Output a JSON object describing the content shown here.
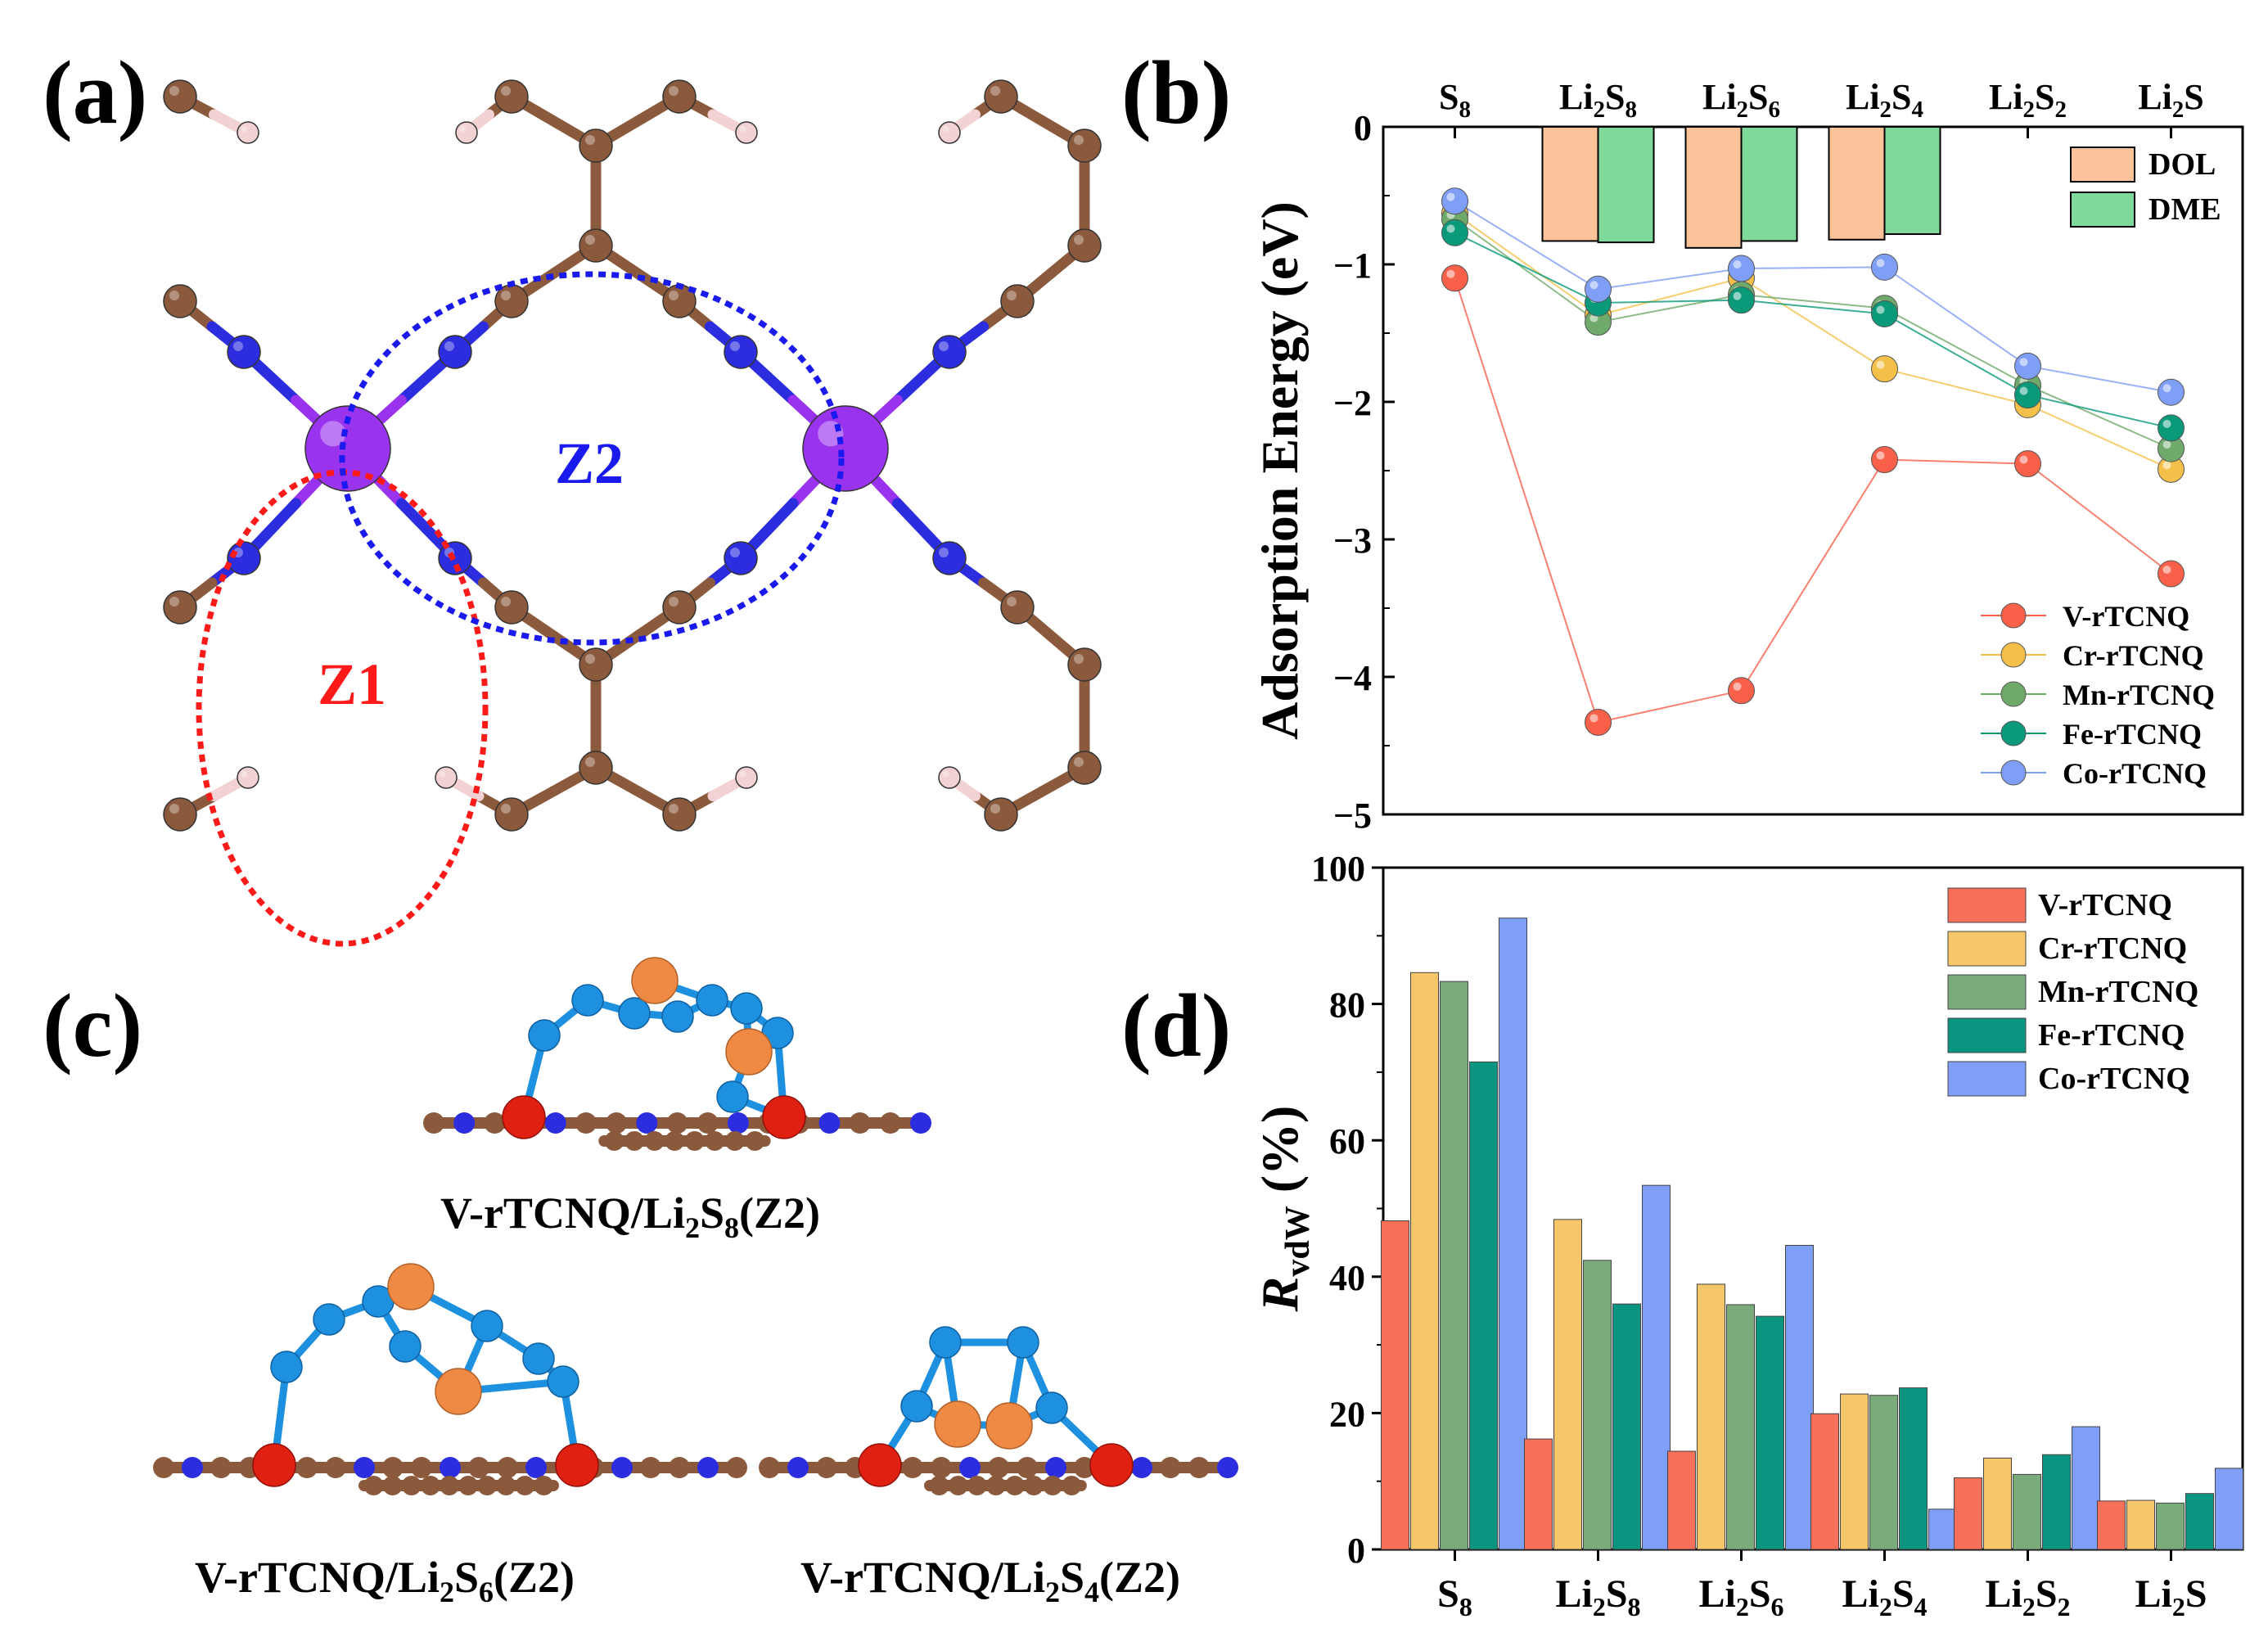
{
  "panels": {
    "a": "(a)",
    "b": "(b)",
    "c": "(c)",
    "d": "(d)"
  },
  "structure_a": {
    "zone1_label": "Z1",
    "zone2_label": "Z2",
    "colors": {
      "carbon": "#8b5a3c",
      "nitrogen": "#2d2de0",
      "metal": "#9933ee",
      "hydrogen": "#f2d2d2",
      "zone1": "#ff1a1a",
      "zone2": "#1a1aee"
    }
  },
  "structures_c": {
    "labels": [
      {
        "pre": "V-rTCNQ/Li",
        "sub1": "2",
        "mid": "S",
        "sub2": "8",
        "post": "(Z2)"
      },
      {
        "pre": "V-rTCNQ/Li",
        "sub1": "2",
        "mid": "S",
        "sub2": "6",
        "post": "(Z2)"
      },
      {
        "pre": "V-rTCNQ/Li",
        "sub1": "2",
        "mid": "S",
        "sub2": "4",
        "post": "(Z2)"
      }
    ],
    "colors": {
      "sulfur": "#1e90e0",
      "lithium": "#ee8a44",
      "vanadium": "#e02010"
    }
  },
  "chart_data": [
    {
      "type": "line",
      "panel": "b",
      "ylabel": "Adsorption Energy (eV)",
      "ylim": [
        -5,
        0
      ],
      "yticks": [
        "0",
        "−1",
        "−2",
        "−3",
        "−4",
        "−5"
      ],
      "categories": [
        {
          "base": "S",
          "sub": "8",
          "pre": ""
        },
        {
          "base": "S",
          "sub": "8",
          "pre": "Li",
          "sub0": "2"
        },
        {
          "base": "S",
          "sub": "6",
          "pre": "Li",
          "sub0": "2"
        },
        {
          "base": "S",
          "sub": "4",
          "pre": "Li",
          "sub0": "2"
        },
        {
          "base": "S",
          "sub": "2",
          "pre": "Li",
          "sub0": "2"
        },
        {
          "base": "S",
          "sub": "",
          "pre": "Li",
          "sub0": "2"
        }
      ],
      "series": [
        {
          "name": "V-rTCNQ",
          "color": "#f8604a",
          "values": [
            -1.1,
            -4.33,
            -4.1,
            -2.42,
            -2.45,
            -3.25
          ]
        },
        {
          "name": "Cr-rTCNQ",
          "color": "#f5c04a",
          "values": [
            -0.63,
            -1.37,
            -1.1,
            -1.76,
            -2.02,
            -2.49
          ]
        },
        {
          "name": "Mn-rTCNQ",
          "color": "#6faa6a",
          "values": [
            -0.67,
            -1.42,
            -1.22,
            -1.32,
            -1.88,
            -2.34
          ]
        },
        {
          "name": "Fe-rTCNQ",
          "color": "#0a9a7a",
          "values": [
            -0.77,
            -1.28,
            -1.26,
            -1.36,
            -1.95,
            -2.19
          ]
        },
        {
          "name": "Co-rTCNQ",
          "color": "#7f9ef6",
          "values": [
            -0.54,
            -1.18,
            -1.03,
            -1.02,
            -1.74,
            -1.93
          ]
        }
      ],
      "solvent_bars": {
        "categories_index": [
          1,
          2,
          3
        ],
        "series": [
          {
            "name": "DOL",
            "color": "#fcc39a",
            "values": [
              -0.83,
              -0.88,
              -0.82
            ]
          },
          {
            "name": "DME",
            "color": "#7fd99a",
            "values": [
              -0.84,
              -0.83,
              -0.78
            ]
          }
        ]
      }
    },
    {
      "type": "bar",
      "panel": "d",
      "ylabel_main": "R",
      "ylabel_sub": "vdW",
      "ylabel_unit": " (%)",
      "ylim": [
        0,
        100
      ],
      "yticks": [
        "0",
        "20",
        "40",
        "60",
        "80",
        "100"
      ],
      "categories": [
        {
          "base": "S",
          "sub": "8",
          "pre": ""
        },
        {
          "base": "S",
          "sub": "8",
          "pre": "Li",
          "sub0": "2"
        },
        {
          "base": "S",
          "sub": "6",
          "pre": "Li",
          "sub0": "2"
        },
        {
          "base": "S",
          "sub": "4",
          "pre": "Li",
          "sub0": "2"
        },
        {
          "base": "S",
          "sub": "2",
          "pre": "Li",
          "sub0": "2"
        },
        {
          "base": "S",
          "sub": "",
          "pre": "Li",
          "sub0": "2"
        }
      ],
      "series": [
        {
          "name": "V-rTCNQ",
          "color": "#f8705a",
          "values": [
            48.2,
            16.2,
            14.4,
            19.9,
            10.5,
            7.1
          ]
        },
        {
          "name": "Cr-rTCNQ",
          "color": "#f5c66a",
          "values": [
            84.6,
            48.4,
            38.9,
            22.8,
            13.4,
            7.2
          ]
        },
        {
          "name": "Mn-rTCNQ",
          "color": "#7aab7a",
          "values": [
            83.3,
            42.4,
            35.9,
            22.6,
            11.0,
            6.8
          ]
        },
        {
          "name": "Fe-rTCNQ",
          "color": "#0a9580",
          "values": [
            71.5,
            36.0,
            34.2,
            23.7,
            13.9,
            8.2
          ]
        },
        {
          "name": "Co-rTCNQ",
          "color": "#7f9ef6",
          "values": [
            92.6,
            53.4,
            44.6,
            5.9,
            18.0,
            11.9
          ]
        }
      ]
    }
  ]
}
